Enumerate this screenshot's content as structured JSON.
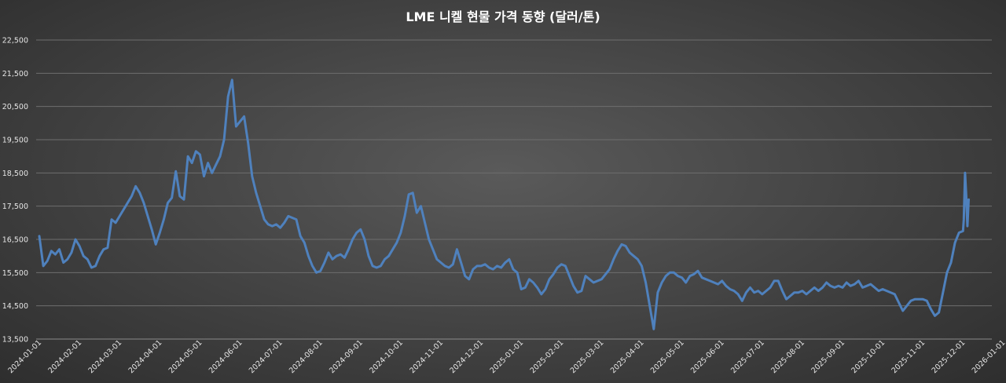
{
  "chart_data": {
    "type": "line",
    "title": "LME 니켈 현물 가격 동향 (달러/톤)",
    "xlabel": "",
    "ylabel": "",
    "ylim": [
      13500,
      22500
    ],
    "yticks": [
      "13,500",
      "14,500",
      "15,500",
      "16,500",
      "17,500",
      "18,500",
      "19,500",
      "20,500",
      "21,500",
      "22,500"
    ],
    "ytick_values": [
      13500,
      14500,
      15500,
      16500,
      17500,
      18500,
      19500,
      20500,
      21500,
      22500
    ],
    "categories": [
      "2024-01-01",
      "2024-02-01",
      "2024-03-01",
      "2024-04-01",
      "2024-05-01",
      "2024-06-01",
      "2024-07-01",
      "2024-08-01",
      "2024-09-01",
      "2024-10-01",
      "2024-11-01",
      "2024-12-01",
      "2025-01-01",
      "2025-02-01",
      "2025-03-01",
      "2025-04-01",
      "2025-05-01",
      "2025-06-01",
      "2025-07-01",
      "2025-08-01",
      "2025-09-01",
      "2025-10-01",
      "2025-11-01",
      "2025-12-01",
      "2026-01-01"
    ],
    "grid": true,
    "legend": "none",
    "line_color": "#4f81bd",
    "series": [
      {
        "name": "LME 니켈 현물",
        "points": [
          [
            0.0,
            16600
          ],
          [
            0.1,
            15700
          ],
          [
            0.2,
            15850
          ],
          [
            0.3,
            16150
          ],
          [
            0.4,
            16050
          ],
          [
            0.5,
            16200
          ],
          [
            0.6,
            15800
          ],
          [
            0.7,
            15900
          ],
          [
            0.8,
            16100
          ],
          [
            0.9,
            16500
          ],
          [
            1.0,
            16300
          ],
          [
            1.1,
            16000
          ],
          [
            1.2,
            15900
          ],
          [
            1.3,
            15650
          ],
          [
            1.4,
            15700
          ],
          [
            1.5,
            16000
          ],
          [
            1.6,
            16200
          ],
          [
            1.7,
            16250
          ],
          [
            1.8,
            17100
          ],
          [
            1.9,
            17000
          ],
          [
            2.0,
            17200
          ],
          [
            2.1,
            17400
          ],
          [
            2.2,
            17600
          ],
          [
            2.3,
            17800
          ],
          [
            2.4,
            18100
          ],
          [
            2.5,
            17900
          ],
          [
            2.6,
            17600
          ],
          [
            2.7,
            17200
          ],
          [
            2.8,
            16800
          ],
          [
            2.9,
            16350
          ],
          [
            3.0,
            16700
          ],
          [
            3.1,
            17100
          ],
          [
            3.2,
            17600
          ],
          [
            3.3,
            17750
          ],
          [
            3.4,
            18550
          ],
          [
            3.5,
            17800
          ],
          [
            3.6,
            17700
          ],
          [
            3.7,
            19000
          ],
          [
            3.8,
            18800
          ],
          [
            3.9,
            19150
          ],
          [
            4.0,
            19050
          ],
          [
            4.1,
            18400
          ],
          [
            4.2,
            18800
          ],
          [
            4.3,
            18500
          ],
          [
            4.4,
            18750
          ],
          [
            4.5,
            19000
          ],
          [
            4.6,
            19500
          ],
          [
            4.7,
            20800
          ],
          [
            4.8,
            21300
          ],
          [
            4.9,
            19900
          ],
          [
            5.0,
            20050
          ],
          [
            5.1,
            20200
          ],
          [
            5.2,
            19400
          ],
          [
            5.3,
            18400
          ],
          [
            5.4,
            17900
          ],
          [
            5.5,
            17500
          ],
          [
            5.6,
            17100
          ],
          [
            5.7,
            16950
          ],
          [
            5.8,
            16900
          ],
          [
            5.9,
            16950
          ],
          [
            6.0,
            16850
          ],
          [
            6.1,
            17000
          ],
          [
            6.2,
            17200
          ],
          [
            6.3,
            17150
          ],
          [
            6.4,
            17100
          ],
          [
            6.5,
            16600
          ],
          [
            6.6,
            16400
          ],
          [
            6.7,
            16000
          ],
          [
            6.8,
            15700
          ],
          [
            6.9,
            15500
          ],
          [
            7.0,
            15550
          ],
          [
            7.1,
            15800
          ],
          [
            7.2,
            16100
          ],
          [
            7.3,
            15900
          ],
          [
            7.4,
            16000
          ],
          [
            7.5,
            16050
          ],
          [
            7.6,
            15950
          ],
          [
            7.7,
            16200
          ],
          [
            7.8,
            16500
          ],
          [
            7.9,
            16700
          ],
          [
            8.0,
            16800
          ],
          [
            8.1,
            16500
          ],
          [
            8.2,
            16000
          ],
          [
            8.3,
            15700
          ],
          [
            8.4,
            15650
          ],
          [
            8.5,
            15700
          ],
          [
            8.6,
            15900
          ],
          [
            8.7,
            16000
          ],
          [
            8.8,
            16200
          ],
          [
            8.9,
            16400
          ],
          [
            9.0,
            16700
          ],
          [
            9.1,
            17200
          ],
          [
            9.2,
            17850
          ],
          [
            9.3,
            17900
          ],
          [
            9.4,
            17300
          ],
          [
            9.5,
            17500
          ],
          [
            9.6,
            17000
          ],
          [
            9.7,
            16500
          ],
          [
            9.8,
            16200
          ],
          [
            9.9,
            15900
          ],
          [
            10.0,
            15800
          ],
          [
            10.1,
            15700
          ],
          [
            10.2,
            15650
          ],
          [
            10.3,
            15750
          ],
          [
            10.4,
            16200
          ],
          [
            10.5,
            15800
          ],
          [
            10.6,
            15400
          ],
          [
            10.7,
            15300
          ],
          [
            10.8,
            15600
          ],
          [
            10.9,
            15700
          ],
          [
            11.0,
            15700
          ],
          [
            11.1,
            15750
          ],
          [
            11.2,
            15650
          ],
          [
            11.3,
            15600
          ],
          [
            11.4,
            15700
          ],
          [
            11.5,
            15650
          ],
          [
            11.6,
            15800
          ],
          [
            11.7,
            15900
          ],
          [
            11.8,
            15600
          ],
          [
            11.9,
            15500
          ],
          [
            12.0,
            15000
          ],
          [
            12.1,
            15050
          ],
          [
            12.2,
            15300
          ],
          [
            12.3,
            15200
          ],
          [
            12.4,
            15050
          ],
          [
            12.5,
            14850
          ],
          [
            12.6,
            15000
          ],
          [
            12.7,
            15300
          ],
          [
            12.8,
            15450
          ],
          [
            12.9,
            15650
          ],
          [
            13.0,
            15750
          ],
          [
            13.1,
            15700
          ],
          [
            13.2,
            15400
          ],
          [
            13.3,
            15100
          ],
          [
            13.4,
            14900
          ],
          [
            13.5,
            14950
          ],
          [
            13.6,
            15400
          ],
          [
            13.7,
            15300
          ],
          [
            13.8,
            15200
          ],
          [
            13.9,
            15250
          ],
          [
            14.0,
            15300
          ],
          [
            14.1,
            15450
          ],
          [
            14.2,
            15600
          ],
          [
            14.3,
            15900
          ],
          [
            14.4,
            16150
          ],
          [
            14.5,
            16350
          ],
          [
            14.6,
            16300
          ],
          [
            14.7,
            16100
          ],
          [
            14.8,
            16000
          ],
          [
            14.9,
            15900
          ],
          [
            15.0,
            15700
          ],
          [
            15.1,
            15200
          ],
          [
            15.2,
            14500
          ],
          [
            15.3,
            13800
          ],
          [
            15.4,
            14900
          ],
          [
            15.5,
            15200
          ],
          [
            15.6,
            15400
          ],
          [
            15.7,
            15500
          ],
          [
            15.8,
            15500
          ],
          [
            15.9,
            15400
          ],
          [
            16.0,
            15350
          ],
          [
            16.1,
            15200
          ],
          [
            16.2,
            15400
          ],
          [
            16.3,
            15450
          ],
          [
            16.4,
            15550
          ],
          [
            16.5,
            15350
          ],
          [
            16.6,
            15300
          ],
          [
            16.7,
            15250
          ],
          [
            16.8,
            15200
          ],
          [
            16.9,
            15150
          ],
          [
            17.0,
            15250
          ],
          [
            17.1,
            15100
          ],
          [
            17.2,
            15000
          ],
          [
            17.3,
            14950
          ],
          [
            17.4,
            14850
          ],
          [
            17.5,
            14650
          ],
          [
            17.6,
            14900
          ],
          [
            17.7,
            15050
          ],
          [
            17.8,
            14900
          ],
          [
            17.9,
            14950
          ],
          [
            18.0,
            14850
          ],
          [
            18.1,
            14950
          ],
          [
            18.2,
            15050
          ],
          [
            18.3,
            15250
          ],
          [
            18.4,
            15250
          ],
          [
            18.5,
            14950
          ],
          [
            18.6,
            14700
          ],
          [
            18.7,
            14800
          ],
          [
            18.8,
            14900
          ],
          [
            18.9,
            14900
          ],
          [
            19.0,
            14950
          ],
          [
            19.1,
            14850
          ],
          [
            19.2,
            14950
          ],
          [
            19.3,
            15050
          ],
          [
            19.4,
            14950
          ],
          [
            19.5,
            15050
          ],
          [
            19.6,
            15200
          ],
          [
            19.7,
            15100
          ],
          [
            19.8,
            15050
          ],
          [
            19.9,
            15100
          ],
          [
            20.0,
            15050
          ],
          [
            20.1,
            15200
          ],
          [
            20.2,
            15100
          ],
          [
            20.3,
            15150
          ],
          [
            20.4,
            15250
          ],
          [
            20.5,
            15050
          ],
          [
            20.6,
            15100
          ],
          [
            20.7,
            15150
          ],
          [
            20.8,
            15050
          ],
          [
            20.9,
            14950
          ],
          [
            21.0,
            15000
          ],
          [
            21.1,
            14950
          ],
          [
            21.2,
            14900
          ],
          [
            21.3,
            14850
          ],
          [
            21.4,
            14600
          ],
          [
            21.5,
            14350
          ],
          [
            21.6,
            14500
          ],
          [
            21.7,
            14650
          ],
          [
            21.8,
            14700
          ],
          [
            21.9,
            14700
          ],
          [
            22.0,
            14700
          ],
          [
            22.1,
            14650
          ],
          [
            22.2,
            14400
          ],
          [
            22.3,
            14200
          ],
          [
            22.4,
            14300
          ],
          [
            22.5,
            14900
          ],
          [
            22.6,
            15500
          ],
          [
            22.7,
            15800
          ],
          [
            22.8,
            16400
          ],
          [
            22.9,
            16700
          ],
          [
            23.0,
            16750
          ],
          [
            23.02,
            17100
          ],
          [
            23.05,
            18500
          ],
          [
            23.08,
            17800
          ],
          [
            23.11,
            16900
          ],
          [
            23.14,
            17700
          ]
        ]
      }
    ]
  }
}
